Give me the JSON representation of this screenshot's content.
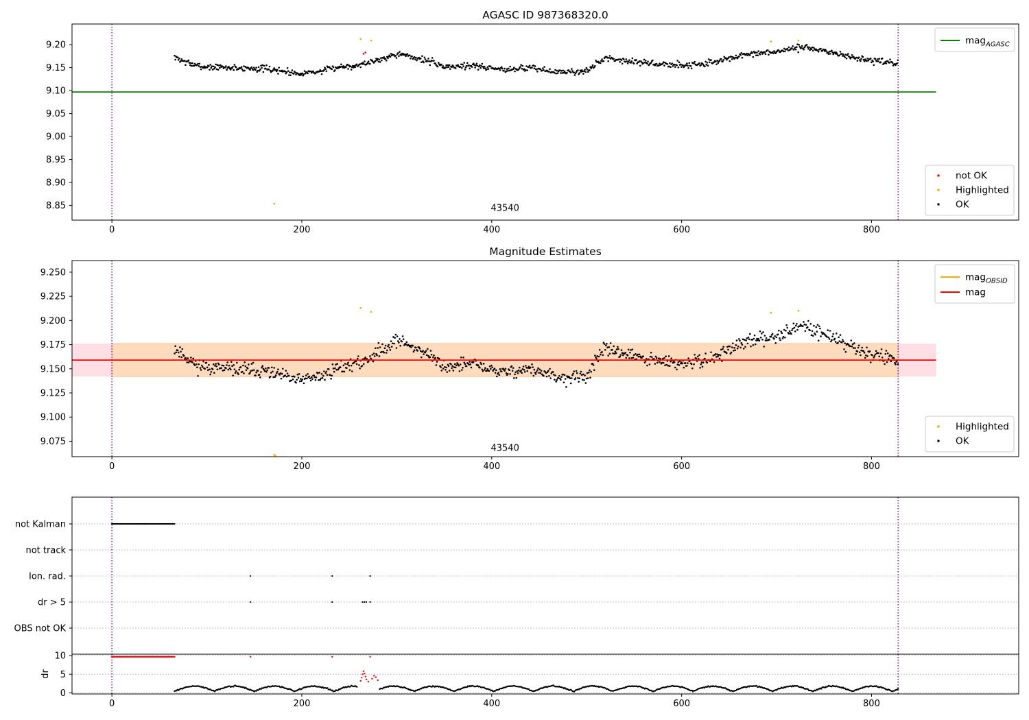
{
  "chart_data": [
    {
      "id": "top",
      "type": "scatter",
      "title": "AGASC ID 987368320.0",
      "xlim": [
        -42,
        955
      ],
      "ylim": [
        8.818,
        9.245
      ],
      "xticks": [
        0,
        200,
        400,
        600,
        800
      ],
      "yticks": [
        8.85,
        8.9,
        8.95,
        9.0,
        9.05,
        9.1,
        9.15,
        9.2
      ],
      "ytick_labels": [
        "8.85",
        "8.90",
        "8.95",
        "9.00",
        "9.05",
        "9.10",
        "9.15",
        "9.20"
      ],
      "vlines": [
        0,
        828
      ],
      "hline": {
        "y": 9.097,
        "x0": -42,
        "x1": 868,
        "color": "#008000"
      },
      "annotation": {
        "text": "43540",
        "x": 414,
        "y": 8.838
      },
      "legend_lines": [
        {
          "label": "mag",
          "sub": "AGASC",
          "color": "#008000"
        }
      ],
      "legend_points": [
        {
          "label": "not OK",
          "color": "#ff0000"
        },
        {
          "label": "Highlighted",
          "color": "#ffa500"
        },
        {
          "label": "OK",
          "color": "#000000"
        }
      ],
      "series": [
        {
          "name": "OK",
          "color": "#000000",
          "generator": "lightcurve",
          "x_range": [
            66,
            828
          ],
          "step": 0.82,
          "seed": 7
        },
        {
          "name": "Highlighted",
          "color": "#ffa500",
          "points": [
            [
              171,
              8.854
            ],
            [
              262,
              9.212
            ],
            [
              273,
              9.209
            ],
            [
              694,
              9.207
            ],
            [
              723,
              9.209
            ]
          ]
        },
        {
          "name": "not OK",
          "color": "#ff0000",
          "points": [
            [
              265,
              9.18
            ],
            [
              267,
              9.183
            ]
          ]
        }
      ]
    },
    {
      "id": "middle",
      "type": "scatter",
      "title": "Magnitude Estimates",
      "xlim": [
        -42,
        955
      ],
      "ylim": [
        9.059,
        9.262
      ],
      "xticks": [
        0,
        200,
        400,
        600,
        800
      ],
      "yticks": [
        9.075,
        9.1,
        9.125,
        9.15,
        9.175,
        9.2,
        9.225,
        9.25
      ],
      "ytick_labels": [
        "9.075",
        "9.100",
        "9.125",
        "9.150",
        "9.175",
        "9.200",
        "9.225",
        "9.250"
      ],
      "vlines": [
        0,
        828
      ],
      "band_outer": {
        "y0": 9.142,
        "y1": 9.176,
        "x0": -42,
        "x1": 868,
        "color": "#ffc0cb"
      },
      "band_inner": {
        "y0": 9.142,
        "y1": 9.176,
        "x0": 0,
        "x1": 828,
        "color": "#ffdab9"
      },
      "mag_line": {
        "y": 9.159,
        "x0": -42,
        "x1": 868,
        "color": "#ff0000"
      },
      "annotation": {
        "text": "43540",
        "x": 414,
        "y": 9.065
      },
      "legend_lines": [
        {
          "label": "mag",
          "sub": "OBSID",
          "color": "#ffa500"
        },
        {
          "label": "mag",
          "sub": "",
          "color": "#ff0000"
        }
      ],
      "legend_points": [
        {
          "label": "Highlighted",
          "color": "#ffa500"
        },
        {
          "label": "OK",
          "color": "#000000"
        }
      ],
      "series": [
        {
          "name": "OK",
          "color": "#000000",
          "generator": "lightcurve",
          "x_range": [
            66,
            828
          ],
          "step": 0.82,
          "seed": 11
        },
        {
          "name": "Highlighted",
          "color": "#ffa500",
          "points": [
            [
              262,
              9.213
            ],
            [
              273,
              9.209
            ],
            [
              694,
              9.208
            ],
            [
              723,
              9.21
            ],
            [
              171,
              9.061
            ],
            [
              172,
              9.06
            ]
          ]
        }
      ]
    },
    {
      "id": "flags",
      "type": "scatter",
      "xlim": [
        -42,
        955
      ],
      "categories": [
        "not Kalman",
        "not track",
        "Ion. rad.",
        "dr > 5",
        "OBS not OK"
      ],
      "vlines": [
        0,
        828
      ],
      "series": [
        {
          "name": "not Kalman",
          "color": "#000000",
          "x_range": [
            0,
            66
          ],
          "step": 1.0
        },
        {
          "name": "not track",
          "color": "#000000",
          "points": []
        },
        {
          "name": "Ion. rad.",
          "color": "#000000",
          "points": [
            146,
            232,
            272
          ]
        },
        {
          "name": "dr > 5",
          "color": "#000000",
          "points": [
            146,
            232,
            264,
            266,
            268,
            272
          ]
        },
        {
          "name": "OBS not OK",
          "color": "#000000",
          "points": []
        }
      ]
    },
    {
      "id": "dr",
      "type": "scatter",
      "xlim": [
        -42,
        955
      ],
      "ylim": [
        -0.3,
        10.4
      ],
      "ylabel": "dr",
      "xticks": [
        0,
        200,
        400,
        600,
        800
      ],
      "yticks": [
        0,
        5,
        10
      ],
      "ytick_labels": [
        "0",
        "5",
        "10"
      ],
      "vlines": [
        0,
        828
      ],
      "series": [
        {
          "name": "dr",
          "color": "#000000",
          "generator": "drcurve",
          "x_range": [
            66,
            828
          ],
          "step": 1.0,
          "seed": 3
        },
        {
          "name": "dr capped",
          "color": "#ff0000",
          "x_range": [
            0,
            66
          ],
          "step": 1.0,
          "y": 9.7
        },
        {
          "name": "dr capped extra",
          "color": "#ff0000",
          "points": [
            [
              146,
              9.7
            ],
            [
              232,
              9.7
            ],
            [
              272,
              9.7
            ]
          ]
        },
        {
          "name": "dr high",
          "color": "#ff0000",
          "points": [
            [
              262,
              3.2
            ],
            [
              263,
              4.1
            ],
            [
              264,
              5.0
            ],
            [
              265,
              5.8
            ],
            [
              266,
              5.2
            ],
            [
              267,
              4.4
            ],
            [
              268,
              3.6
            ],
            [
              270,
              3.0
            ],
            [
              274,
              3.8
            ],
            [
              276,
              4.6
            ],
            [
              278,
              4.2
            ],
            [
              280,
              3.4
            ]
          ]
        }
      ]
    }
  ]
}
